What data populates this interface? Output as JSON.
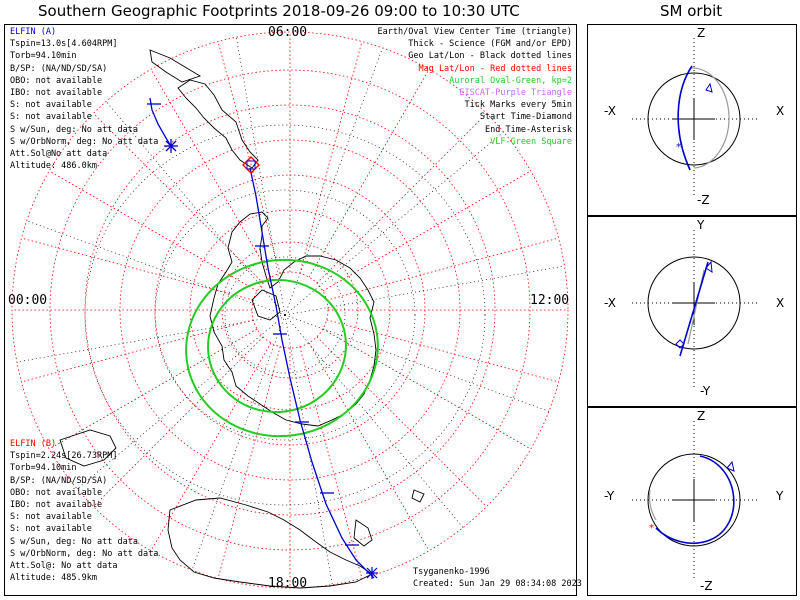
{
  "header": {
    "title": "Southern Geographic Footprints 2018-09-26 09:00 to 10:30 UTC",
    "sm_title": "SM orbit"
  },
  "map": {
    "time_labels": {
      "top": "06:00",
      "left": "00:00",
      "right": "12:00",
      "bottom": "18:00"
    },
    "satellite_a": {
      "name": "ELFIN (A)",
      "lines": [
        "Tspin=13.0s[4.604RPM]",
        "Torb=94.10min",
        "B/SP: (NA/ND/SD/SA)",
        "OBO: not available",
        "IBO: not available",
        "S: not available",
        "S: not available",
        "S w/Sun, deg: No att data",
        "S w/OrbNorm, deg: No att data",
        "Att.Sol@No att data",
        "Altitude: 486.0km"
      ]
    },
    "satellite_b": {
      "name": "ELFIN (B)",
      "lines": [
        "Tspin=2.24s[26.73RPM]",
        "Torb=94.10min",
        "B/SP: (NA/ND/SD/SA)",
        "OBO: not available",
        "IBO: not available",
        "S: not available",
        "S: not available",
        "S w/Sun, deg: No att data",
        "S w/OrbNorm, deg: No att data",
        "Att.Sol@: No att data",
        "Altitude: 485.9km"
      ]
    },
    "legend": {
      "l1": "Earth/Oval View Center Time (triangle)",
      "l2": "Thick - Science (FGM and/or EPD)",
      "l3": "Geo Lat/Lon - Black dotted lines",
      "l4": "Mag Lat/Lon - Red dotted lines",
      "l5": "Auroral Oval-Green, kp=2",
      "l6": "EISCAT-Purple Triangle",
      "l7": "Tick Marks every 5min",
      "l8": "Start Time-Diamond",
      "l9": "End Time-Asterisk",
      "l10": "VLF-Green Square"
    },
    "credit": {
      "model": "Tsyganenko-1996",
      "created": "Created: Sun Jan 29 08:34:08 2023"
    }
  },
  "sm_orbit": {
    "panel1": {
      "top": "Z",
      "bottom": "-Z",
      "left": "-X",
      "right": "X"
    },
    "panel2": {
      "top": "Y",
      "bottom": "-Y",
      "left": "-X",
      "right": "X"
    },
    "panel3": {
      "top": "Z",
      "bottom": "-Z",
      "left": "-Y",
      "right": "Y"
    }
  },
  "colors": {
    "track": "#0000cc",
    "mag_grid": "#ff0000",
    "geo_grid": "#000000",
    "aurora": "#22cc22",
    "orbit_b": "#999999"
  }
}
